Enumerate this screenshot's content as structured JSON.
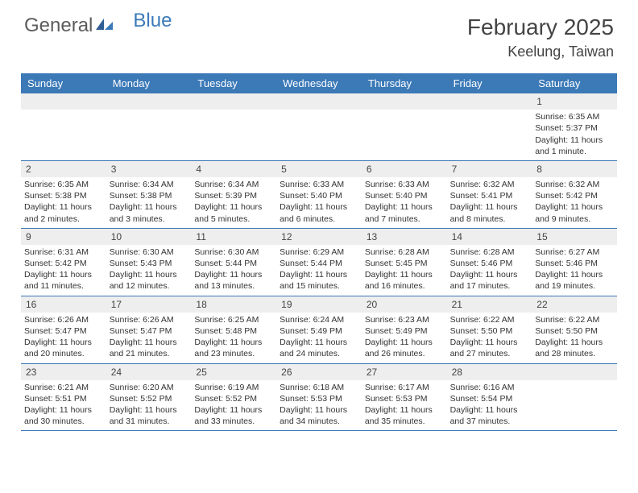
{
  "logo": {
    "text1": "General",
    "text2": "Blue"
  },
  "title": "February 2025",
  "location": "Keelung, Taiwan",
  "theme": {
    "header_bg": "#3b79b7",
    "header_fg": "#ffffff",
    "daynum_bg": "#eeeeee",
    "border": "#3b79b7",
    "text": "#333333"
  },
  "dayNames": [
    "Sunday",
    "Monday",
    "Tuesday",
    "Wednesday",
    "Thursday",
    "Friday",
    "Saturday"
  ],
  "weeks": [
    [
      null,
      null,
      null,
      null,
      null,
      null,
      {
        "n": "1",
        "sunrise": "6:35 AM",
        "sunset": "5:37 PM",
        "day": "11 hours and 1 minute."
      }
    ],
    [
      {
        "n": "2",
        "sunrise": "6:35 AM",
        "sunset": "5:38 PM",
        "day": "11 hours and 2 minutes."
      },
      {
        "n": "3",
        "sunrise": "6:34 AM",
        "sunset": "5:38 PM",
        "day": "11 hours and 3 minutes."
      },
      {
        "n": "4",
        "sunrise": "6:34 AM",
        "sunset": "5:39 PM",
        "day": "11 hours and 5 minutes."
      },
      {
        "n": "5",
        "sunrise": "6:33 AM",
        "sunset": "5:40 PM",
        "day": "11 hours and 6 minutes."
      },
      {
        "n": "6",
        "sunrise": "6:33 AM",
        "sunset": "5:40 PM",
        "day": "11 hours and 7 minutes."
      },
      {
        "n": "7",
        "sunrise": "6:32 AM",
        "sunset": "5:41 PM",
        "day": "11 hours and 8 minutes."
      },
      {
        "n": "8",
        "sunrise": "6:32 AM",
        "sunset": "5:42 PM",
        "day": "11 hours and 9 minutes."
      }
    ],
    [
      {
        "n": "9",
        "sunrise": "6:31 AM",
        "sunset": "5:42 PM",
        "day": "11 hours and 11 minutes."
      },
      {
        "n": "10",
        "sunrise": "6:30 AM",
        "sunset": "5:43 PM",
        "day": "11 hours and 12 minutes."
      },
      {
        "n": "11",
        "sunrise": "6:30 AM",
        "sunset": "5:44 PM",
        "day": "11 hours and 13 minutes."
      },
      {
        "n": "12",
        "sunrise": "6:29 AM",
        "sunset": "5:44 PM",
        "day": "11 hours and 15 minutes."
      },
      {
        "n": "13",
        "sunrise": "6:28 AM",
        "sunset": "5:45 PM",
        "day": "11 hours and 16 minutes."
      },
      {
        "n": "14",
        "sunrise": "6:28 AM",
        "sunset": "5:46 PM",
        "day": "11 hours and 17 minutes."
      },
      {
        "n": "15",
        "sunrise": "6:27 AM",
        "sunset": "5:46 PM",
        "day": "11 hours and 19 minutes."
      }
    ],
    [
      {
        "n": "16",
        "sunrise": "6:26 AM",
        "sunset": "5:47 PM",
        "day": "11 hours and 20 minutes."
      },
      {
        "n": "17",
        "sunrise": "6:26 AM",
        "sunset": "5:47 PM",
        "day": "11 hours and 21 minutes."
      },
      {
        "n": "18",
        "sunrise": "6:25 AM",
        "sunset": "5:48 PM",
        "day": "11 hours and 23 minutes."
      },
      {
        "n": "19",
        "sunrise": "6:24 AM",
        "sunset": "5:49 PM",
        "day": "11 hours and 24 minutes."
      },
      {
        "n": "20",
        "sunrise": "6:23 AM",
        "sunset": "5:49 PM",
        "day": "11 hours and 26 minutes."
      },
      {
        "n": "21",
        "sunrise": "6:22 AM",
        "sunset": "5:50 PM",
        "day": "11 hours and 27 minutes."
      },
      {
        "n": "22",
        "sunrise": "6:22 AM",
        "sunset": "5:50 PM",
        "day": "11 hours and 28 minutes."
      }
    ],
    [
      {
        "n": "23",
        "sunrise": "6:21 AM",
        "sunset": "5:51 PM",
        "day": "11 hours and 30 minutes."
      },
      {
        "n": "24",
        "sunrise": "6:20 AM",
        "sunset": "5:52 PM",
        "day": "11 hours and 31 minutes."
      },
      {
        "n": "25",
        "sunrise": "6:19 AM",
        "sunset": "5:52 PM",
        "day": "11 hours and 33 minutes."
      },
      {
        "n": "26",
        "sunrise": "6:18 AM",
        "sunset": "5:53 PM",
        "day": "11 hours and 34 minutes."
      },
      {
        "n": "27",
        "sunrise": "6:17 AM",
        "sunset": "5:53 PM",
        "day": "11 hours and 35 minutes."
      },
      {
        "n": "28",
        "sunrise": "6:16 AM",
        "sunset": "5:54 PM",
        "day": "11 hours and 37 minutes."
      },
      null
    ]
  ],
  "labels": {
    "sunrise": "Sunrise:",
    "sunset": "Sunset:",
    "daylight": "Daylight:"
  }
}
